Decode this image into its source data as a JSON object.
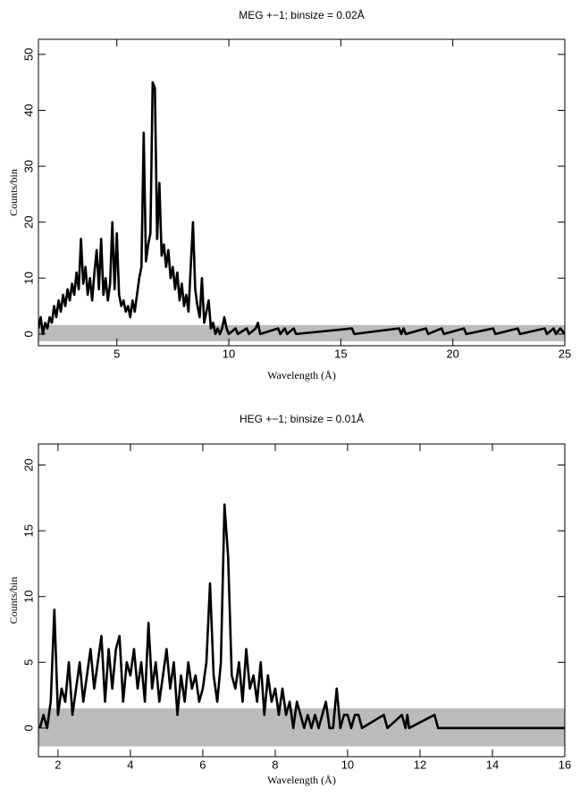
{
  "chart_data": [
    {
      "type": "line",
      "title": "MEG +−1; binsize = 0.02Å",
      "x_label": "Wavelength (Å)",
      "y_label": "Counts/bin",
      "xlim": [
        1.5,
        25
      ],
      "ylim": [
        -2.1,
        52.7
      ],
      "xticks": [
        5,
        10,
        15,
        20,
        25
      ],
      "yticks": [
        0,
        10,
        20,
        30,
        40,
        50
      ],
      "band": [
        -1.3,
        1.6
      ],
      "band_color": "#bbbbbb",
      "x": [
        1.5,
        1.6,
        1.7,
        1.8,
        1.9,
        2.0,
        2.1,
        2.2,
        2.3,
        2.4,
        2.5,
        2.6,
        2.7,
        2.8,
        2.9,
        3.0,
        3.1,
        3.2,
        3.3,
        3.4,
        3.5,
        3.6,
        3.7,
        3.8,
        3.9,
        4.0,
        4.1,
        4.2,
        4.3,
        4.4,
        4.5,
        4.6,
        4.7,
        4.8,
        4.9,
        5.0,
        5.1,
        5.2,
        5.3,
        5.4,
        5.5,
        5.6,
        5.7,
        5.8,
        5.9,
        6.0,
        6.1,
        6.2,
        6.3,
        6.4,
        6.5,
        6.6,
        6.7,
        6.8,
        6.9,
        7.0,
        7.1,
        7.2,
        7.3,
        7.4,
        7.5,
        7.6,
        7.7,
        7.8,
        7.9,
        8.0,
        8.1,
        8.2,
        8.3,
        8.4,
        8.5,
        8.6,
        8.7,
        8.8,
        8.9,
        9.0,
        9.1,
        9.2,
        9.3,
        9.4,
        9.5,
        9.6,
        9.7,
        9.8,
        9.9,
        10.0,
        10.3,
        10.4,
        10.8,
        10.9,
        11.2,
        11.3,
        11.4,
        12.2,
        12.3,
        12.5,
        12.6,
        12.9,
        13.0,
        15.5,
        15.6,
        17.6,
        17.7,
        17.8,
        17.9,
        18.8,
        18.9,
        19.5,
        19.6,
        20.5,
        20.6,
        21.8,
        21.9,
        22.9,
        23.0,
        24.1,
        24.2,
        24.5,
        24.6,
        24.8,
        25.0
      ],
      "series": [
        {
          "color": "#000000",
          "values": [
            1,
            3,
            0,
            2,
            1,
            3,
            2,
            5,
            3,
            6,
            4,
            7,
            5,
            8,
            6,
            9,
            7,
            11,
            8,
            17,
            9,
            12,
            7,
            10,
            6,
            11,
            15,
            8,
            17,
            7,
            10,
            6,
            9,
            20,
            8,
            18,
            7,
            5,
            6,
            4,
            5,
            3,
            6,
            4,
            7,
            10,
            12,
            36,
            13,
            16,
            18,
            45,
            44,
            17,
            27,
            14,
            16,
            12,
            15,
            10,
            12,
            8,
            11,
            6,
            9,
            5,
            7,
            4,
            12,
            20,
            8,
            5,
            3,
            10,
            2,
            4,
            6,
            1,
            2,
            0,
            1,
            0,
            1,
            3,
            1,
            0,
            1,
            0,
            1,
            0,
            1,
            2,
            0,
            1,
            0,
            1,
            0,
            1,
            0,
            1,
            0,
            1,
            0,
            1,
            0,
            1,
            0,
            1,
            0,
            1,
            0,
            1,
            0,
            1,
            0,
            1,
            0,
            1,
            0,
            1,
            0
          ]
        }
      ]
    },
    {
      "type": "line",
      "title": "HEG +−1; binsize = 0.01Å",
      "x_label": "Wavelength (Å)",
      "y_label": "Counts/bin",
      "xlim": [
        1.46,
        16
      ],
      "ylim": [
        -2.18,
        21.6
      ],
      "xticks": [
        2,
        4,
        6,
        8,
        10,
        12,
        14,
        16
      ],
      "yticks": [
        0,
        5,
        10,
        15,
        20
      ],
      "band": [
        -1.4,
        1.5
      ],
      "band_color": "#bbbbbb",
      "x": [
        1.5,
        1.6,
        1.7,
        1.8,
        1.9,
        2.0,
        2.1,
        2.2,
        2.3,
        2.4,
        2.5,
        2.6,
        2.7,
        2.8,
        2.9,
        3.0,
        3.1,
        3.2,
        3.3,
        3.4,
        3.5,
        3.6,
        3.7,
        3.8,
        3.9,
        4.0,
        4.1,
        4.2,
        4.3,
        4.4,
        4.5,
        4.6,
        4.7,
        4.8,
        4.9,
        5.0,
        5.1,
        5.2,
        5.3,
        5.4,
        5.5,
        5.6,
        5.7,
        5.8,
        5.9,
        6.0,
        6.1,
        6.2,
        6.3,
        6.4,
        6.5,
        6.6,
        6.7,
        6.8,
        6.9,
        7.0,
        7.1,
        7.2,
        7.3,
        7.4,
        7.5,
        7.6,
        7.7,
        7.8,
        7.9,
        8.0,
        8.1,
        8.2,
        8.3,
        8.4,
        8.5,
        8.6,
        8.7,
        8.8,
        8.9,
        9.0,
        9.1,
        9.2,
        9.3,
        9.4,
        9.5,
        9.6,
        9.7,
        9.8,
        9.9,
        10.0,
        10.1,
        10.2,
        10.3,
        10.4,
        11.0,
        11.1,
        11.5,
        11.6,
        11.65,
        11.7,
        12.4,
        12.5,
        16.0
      ],
      "series": [
        {
          "color": "#000000",
          "values": [
            0,
            1,
            0,
            2,
            9,
            1,
            3,
            2,
            5,
            1,
            3,
            5,
            2,
            4,
            6,
            3,
            5,
            7,
            2,
            6,
            3,
            6,
            7,
            2,
            5,
            4,
            6,
            3,
            5,
            2,
            8,
            3,
            5,
            2,
            4,
            6,
            3,
            5,
            1,
            4,
            2,
            5,
            3,
            4,
            2,
            3,
            5,
            11,
            4,
            2,
            5,
            17,
            13,
            4,
            3,
            5,
            2,
            6,
            3,
            4,
            2,
            5,
            1,
            4,
            2,
            3,
            1,
            3,
            1,
            2,
            0,
            2,
            1,
            0,
            1,
            0,
            1,
            0,
            1,
            2,
            0,
            0,
            3,
            0,
            1,
            1,
            0,
            1,
            1,
            0,
            1,
            0,
            1,
            0,
            1,
            0,
            1,
            0,
            0
          ]
        }
      ]
    }
  ]
}
